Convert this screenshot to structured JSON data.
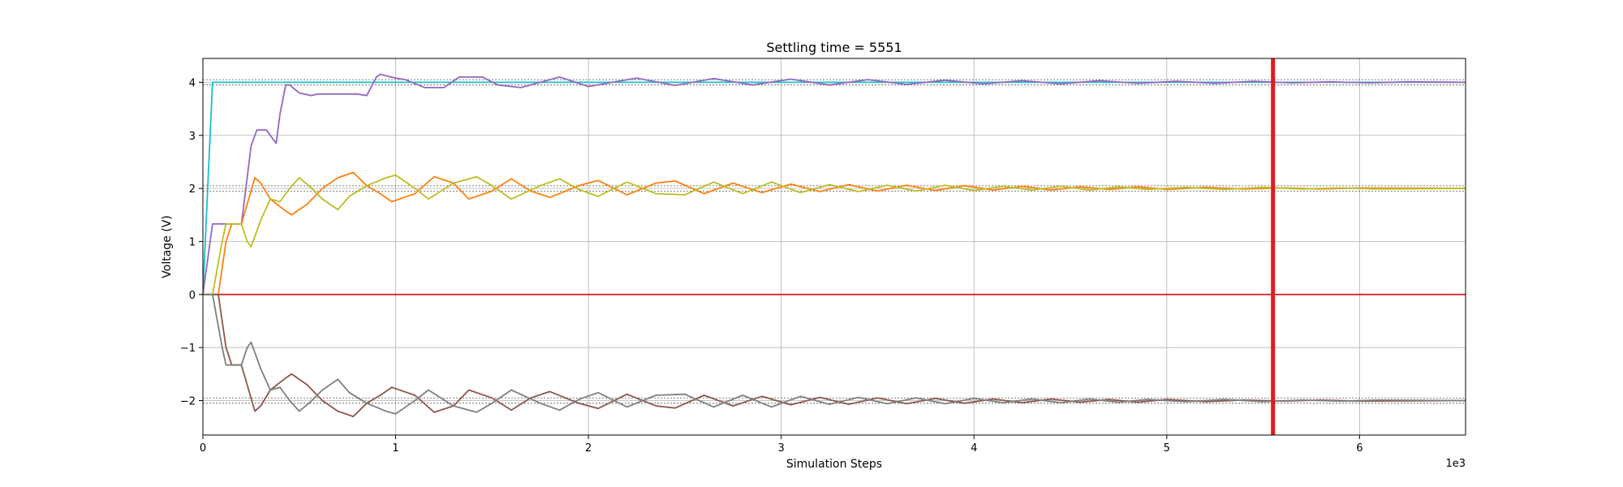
{
  "chart_data": {
    "type": "line",
    "title": "Settling time = 5551",
    "xlabel": "Simulation Steps",
    "ylabel": "Voltage (V)",
    "x_offset_label": "1e3",
    "xlim": [
      0,
      6550
    ],
    "ylim": [
      -2.65,
      4.45
    ],
    "x_ticks": [
      0,
      1000,
      2000,
      3000,
      4000,
      5000,
      6000
    ],
    "x_tick_labels": [
      "0",
      "1",
      "2",
      "3",
      "4",
      "5",
      "6"
    ],
    "y_ticks": [
      -2,
      -1,
      0,
      1,
      2,
      3,
      4
    ],
    "y_tick_labels": [
      "−2",
      "−1",
      "0",
      "1",
      "2",
      "3",
      "4"
    ],
    "grid": true,
    "settling_line": {
      "x": 5551,
      "color": "#e41a1c"
    },
    "tolerance_bands": [
      {
        "center": 4,
        "band": 0.05
      },
      {
        "center": 2,
        "band": 0.05
      },
      {
        "center": -2,
        "band": 0.05
      }
    ],
    "series": [
      {
        "color": "#17becf",
        "points": [
          [
            0,
            0
          ],
          [
            50,
            4
          ],
          [
            6550,
            4
          ]
        ]
      },
      {
        "color": "#d62728",
        "points": [
          [
            0,
            0
          ],
          [
            6550,
            0
          ]
        ]
      },
      {
        "color": "#9467bd",
        "points": [
          [
            0,
            0
          ],
          [
            50,
            1.33
          ],
          [
            200,
            1.33
          ],
          [
            230,
            2.2
          ],
          [
            250,
            2.8
          ],
          [
            280,
            3.1
          ],
          [
            330,
            3.1
          ],
          [
            350,
            3.0
          ],
          [
            380,
            2.85
          ],
          [
            400,
            3.4
          ],
          [
            430,
            3.95
          ],
          [
            450,
            3.95
          ],
          [
            500,
            3.8
          ],
          [
            560,
            3.75
          ],
          [
            600,
            3.78
          ],
          [
            700,
            3.78
          ],
          [
            800,
            3.78
          ],
          [
            850,
            3.75
          ],
          [
            900,
            4.1
          ],
          [
            920,
            4.15
          ],
          [
            1000,
            4.08
          ],
          [
            1050,
            4.05
          ],
          [
            1150,
            3.9
          ],
          [
            1250,
            3.9
          ],
          [
            1330,
            4.1
          ],
          [
            1450,
            4.1
          ],
          [
            1530,
            3.95
          ],
          [
            1650,
            3.9
          ],
          [
            1850,
            4.1
          ],
          [
            2000,
            3.92
          ],
          [
            2250,
            4.08
          ],
          [
            2450,
            3.94
          ],
          [
            2650,
            4.07
          ],
          [
            2850,
            3.95
          ],
          [
            3050,
            4.06
          ],
          [
            3250,
            3.95
          ],
          [
            3450,
            4.05
          ],
          [
            3650,
            3.96
          ],
          [
            3850,
            4.04
          ],
          [
            4050,
            3.97
          ],
          [
            4250,
            4.03
          ],
          [
            4450,
            3.97
          ],
          [
            4650,
            4.03
          ],
          [
            4850,
            3.98
          ],
          [
            5050,
            4.02
          ],
          [
            5250,
            3.98
          ],
          [
            5450,
            4.02
          ],
          [
            5650,
            3.99
          ],
          [
            5850,
            4.01
          ],
          [
            6050,
            3.99
          ],
          [
            6250,
            4.01
          ],
          [
            6550,
            4.0
          ]
        ]
      },
      {
        "color": "#ff7f0e",
        "points": [
          [
            0,
            0
          ],
          [
            80,
            0
          ],
          [
            120,
            1.0
          ],
          [
            150,
            1.33
          ],
          [
            200,
            1.33
          ],
          [
            270,
            2.2
          ],
          [
            300,
            2.1
          ],
          [
            350,
            1.8
          ],
          [
            420,
            1.6
          ],
          [
            460,
            1.5
          ],
          [
            540,
            1.7
          ],
          [
            620,
            2.0
          ],
          [
            700,
            2.2
          ],
          [
            780,
            2.3
          ],
          [
            850,
            2.05
          ],
          [
            920,
            1.9
          ],
          [
            980,
            1.75
          ],
          [
            1100,
            1.9
          ],
          [
            1200,
            2.22
          ],
          [
            1300,
            2.1
          ],
          [
            1380,
            1.8
          ],
          [
            1500,
            1.95
          ],
          [
            1600,
            2.18
          ],
          [
            1700,
            1.95
          ],
          [
            1800,
            1.83
          ],
          [
            1950,
            2.05
          ],
          [
            2050,
            2.15
          ],
          [
            2200,
            1.88
          ],
          [
            2350,
            2.1
          ],
          [
            2450,
            2.14
          ],
          [
            2600,
            1.9
          ],
          [
            2750,
            2.1
          ],
          [
            2900,
            1.92
          ],
          [
            3050,
            2.08
          ],
          [
            3200,
            1.94
          ],
          [
            3350,
            2.07
          ],
          [
            3500,
            1.95
          ],
          [
            3650,
            2.06
          ],
          [
            3800,
            1.96
          ],
          [
            3950,
            2.05
          ],
          [
            4100,
            1.97
          ],
          [
            4250,
            2.04
          ],
          [
            4400,
            1.97
          ],
          [
            4550,
            2.03
          ],
          [
            4700,
            1.98
          ],
          [
            4850,
            2.03
          ],
          [
            5000,
            1.98
          ],
          [
            5200,
            2.02
          ],
          [
            5400,
            1.99
          ],
          [
            5600,
            2.01
          ],
          [
            5800,
            1.99
          ],
          [
            6000,
            2.01
          ],
          [
            6550,
            2.0
          ]
        ]
      },
      {
        "color": "#bcbd22",
        "points": [
          [
            0,
            0
          ],
          [
            50,
            0
          ],
          [
            100,
            1.0
          ],
          [
            120,
            1.33
          ],
          [
            200,
            1.33
          ],
          [
            230,
            1.0
          ],
          [
            250,
            0.9
          ],
          [
            300,
            1.4
          ],
          [
            350,
            1.8
          ],
          [
            400,
            1.75
          ],
          [
            450,
            2.0
          ],
          [
            500,
            2.2
          ],
          [
            550,
            2.05
          ],
          [
            620,
            1.8
          ],
          [
            700,
            1.6
          ],
          [
            760,
            1.85
          ],
          [
            850,
            2.05
          ],
          [
            950,
            2.2
          ],
          [
            1000,
            2.25
          ],
          [
            1100,
            2.0
          ],
          [
            1170,
            1.8
          ],
          [
            1300,
            2.1
          ],
          [
            1420,
            2.22
          ],
          [
            1500,
            2.05
          ],
          [
            1600,
            1.8
          ],
          [
            1750,
            2.05
          ],
          [
            1850,
            2.18
          ],
          [
            1950,
            1.98
          ],
          [
            2050,
            1.85
          ],
          [
            2200,
            2.12
          ],
          [
            2350,
            1.9
          ],
          [
            2500,
            1.88
          ],
          [
            2650,
            2.12
          ],
          [
            2800,
            1.9
          ],
          [
            2950,
            2.12
          ],
          [
            3100,
            1.92
          ],
          [
            3250,
            2.07
          ],
          [
            3400,
            1.94
          ],
          [
            3550,
            2.06
          ],
          [
            3700,
            1.95
          ],
          [
            3850,
            2.06
          ],
          [
            4000,
            1.96
          ],
          [
            4150,
            2.04
          ],
          [
            4300,
            1.97
          ],
          [
            4450,
            2.04
          ],
          [
            4600,
            1.97
          ],
          [
            4750,
            2.03
          ],
          [
            4900,
            1.98
          ],
          [
            5100,
            2.02
          ],
          [
            5300,
            1.98
          ],
          [
            5500,
            2.02
          ],
          [
            5700,
            1.99
          ],
          [
            5900,
            2.01
          ],
          [
            6100,
            1.99
          ],
          [
            6550,
            2.0
          ]
        ]
      },
      {
        "color": "#8c564b",
        "points": [
          [
            0,
            0
          ],
          [
            80,
            0
          ],
          [
            120,
            -1.0
          ],
          [
            150,
            -1.33
          ],
          [
            200,
            -1.33
          ],
          [
            270,
            -2.2
          ],
          [
            300,
            -2.1
          ],
          [
            350,
            -1.8
          ],
          [
            420,
            -1.6
          ],
          [
            460,
            -1.5
          ],
          [
            540,
            -1.7
          ],
          [
            620,
            -2.0
          ],
          [
            700,
            -2.2
          ],
          [
            780,
            -2.3
          ],
          [
            850,
            -2.05
          ],
          [
            920,
            -1.9
          ],
          [
            980,
            -1.75
          ],
          [
            1100,
            -1.9
          ],
          [
            1200,
            -2.22
          ],
          [
            1300,
            -2.1
          ],
          [
            1380,
            -1.8
          ],
          [
            1500,
            -1.95
          ],
          [
            1600,
            -2.18
          ],
          [
            1700,
            -1.95
          ],
          [
            1800,
            -1.83
          ],
          [
            1950,
            -2.05
          ],
          [
            2050,
            -2.15
          ],
          [
            2200,
            -1.88
          ],
          [
            2350,
            -2.1
          ],
          [
            2450,
            -2.14
          ],
          [
            2600,
            -1.9
          ],
          [
            2750,
            -2.1
          ],
          [
            2900,
            -1.92
          ],
          [
            3050,
            -2.08
          ],
          [
            3200,
            -1.94
          ],
          [
            3350,
            -2.07
          ],
          [
            3500,
            -1.95
          ],
          [
            3650,
            -2.06
          ],
          [
            3800,
            -1.96
          ],
          [
            3950,
            -2.05
          ],
          [
            4100,
            -1.97
          ],
          [
            4250,
            -2.04
          ],
          [
            4400,
            -1.97
          ],
          [
            4550,
            -2.03
          ],
          [
            4700,
            -1.98
          ],
          [
            4850,
            -2.03
          ],
          [
            5000,
            -1.98
          ],
          [
            5200,
            -2.02
          ],
          [
            5400,
            -1.99
          ],
          [
            5600,
            -2.01
          ],
          [
            5800,
            -1.99
          ],
          [
            6000,
            -2.01
          ],
          [
            6550,
            -2.0
          ]
        ]
      },
      {
        "color": "#7f7f7f",
        "points": [
          [
            0,
            0
          ],
          [
            50,
            0
          ],
          [
            100,
            -1.0
          ],
          [
            120,
            -1.33
          ],
          [
            200,
            -1.33
          ],
          [
            230,
            -1.0
          ],
          [
            250,
            -0.9
          ],
          [
            300,
            -1.4
          ],
          [
            350,
            -1.8
          ],
          [
            400,
            -1.75
          ],
          [
            450,
            -2.0
          ],
          [
            500,
            -2.2
          ],
          [
            550,
            -2.05
          ],
          [
            620,
            -1.8
          ],
          [
            700,
            -1.6
          ],
          [
            760,
            -1.85
          ],
          [
            850,
            -2.05
          ],
          [
            950,
            -2.2
          ],
          [
            1000,
            -2.25
          ],
          [
            1100,
            -2.0
          ],
          [
            1170,
            -1.8
          ],
          [
            1300,
            -2.1
          ],
          [
            1420,
            -2.22
          ],
          [
            1500,
            -2.05
          ],
          [
            1600,
            -1.8
          ],
          [
            1750,
            -2.05
          ],
          [
            1850,
            -2.18
          ],
          [
            1950,
            -1.98
          ],
          [
            2050,
            -1.85
          ],
          [
            2200,
            -2.12
          ],
          [
            2350,
            -1.9
          ],
          [
            2500,
            -1.88
          ],
          [
            2650,
            -2.12
          ],
          [
            2800,
            -1.9
          ],
          [
            2950,
            -2.12
          ],
          [
            3100,
            -1.92
          ],
          [
            3250,
            -2.07
          ],
          [
            3400,
            -1.94
          ],
          [
            3550,
            -2.06
          ],
          [
            3700,
            -1.95
          ],
          [
            3850,
            -2.06
          ],
          [
            4000,
            -1.96
          ],
          [
            4150,
            -2.04
          ],
          [
            4300,
            -1.97
          ],
          [
            4450,
            -2.04
          ],
          [
            4600,
            -1.97
          ],
          [
            4750,
            -2.03
          ],
          [
            4900,
            -1.98
          ],
          [
            5100,
            -2.02
          ],
          [
            5300,
            -1.98
          ],
          [
            5500,
            -2.02
          ],
          [
            5700,
            -1.99
          ],
          [
            5900,
            -2.01
          ],
          [
            6100,
            -1.99
          ],
          [
            6550,
            -2.0
          ]
        ]
      }
    ]
  }
}
